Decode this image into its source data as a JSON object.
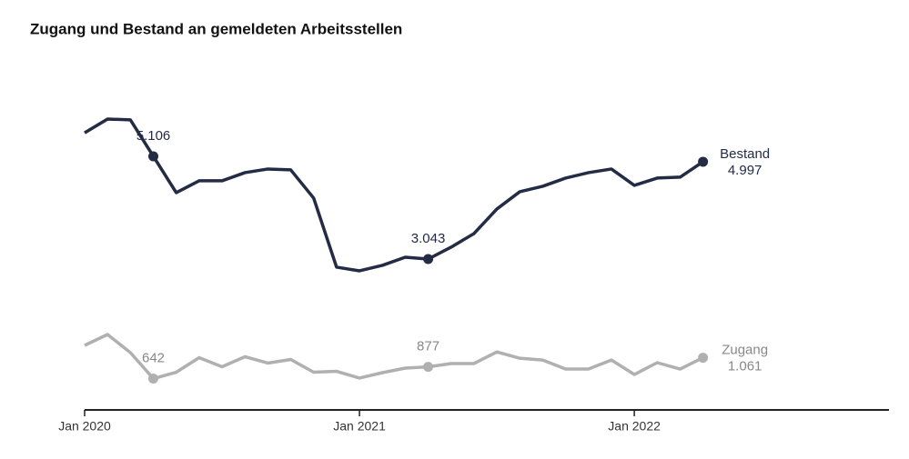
{
  "chart_data": {
    "type": "line",
    "title": "Zugang und Bestand an gemeldeten Arbeitsstellen",
    "x": [
      "2020-01",
      "2020-02",
      "2020-03",
      "2020-04",
      "2020-05",
      "2020-06",
      "2020-07",
      "2020-08",
      "2020-09",
      "2020-10",
      "2020-11",
      "2020-12",
      "2021-01",
      "2021-02",
      "2021-03",
      "2021-04",
      "2021-05",
      "2021-06",
      "2021-07",
      "2021-08",
      "2021-09",
      "2021-10",
      "2021-11",
      "2021-12",
      "2022-01",
      "2022-02",
      "2022-03",
      "2022-04"
    ],
    "xlim": [
      "2020-01",
      "2022-12"
    ],
    "xticks": [
      {
        "value": "2020-01",
        "label": "Jan 2020"
      },
      {
        "value": "2021-01",
        "label": "Jan 2021"
      },
      {
        "value": "2022-01",
        "label": "Jan 2022"
      }
    ],
    "ylim": [
      0,
      6000
    ],
    "grid": false,
    "series": [
      {
        "name": "Bestand",
        "color": "#232b45",
        "values": [
          5578,
          5855,
          5837,
          5106,
          4376,
          4614,
          4614,
          4778,
          4851,
          4833,
          4267,
          2880,
          2806,
          2916,
          3080,
          3043,
          3281,
          3555,
          4048,
          4395,
          4504,
          4669,
          4778,
          4851,
          4523,
          4669,
          4687,
          4997
        ],
        "value_labels": [
          null,
          null,
          null,
          "5.106",
          null,
          null,
          null,
          null,
          null,
          null,
          null,
          null,
          null,
          null,
          null,
          "3.043",
          null,
          null,
          null,
          null,
          null,
          null,
          null,
          null,
          null,
          null,
          null,
          "4.997"
        ]
      },
      {
        "name": "Zugang",
        "color": "#b0b0b0",
        "values": [
          1309,
          1528,
          1163,
          642,
          770,
          1063,
          880,
          1081,
          953,
          1026,
          770,
          788,
          652,
          761,
          852,
          877,
          944,
          944,
          1177,
          1050,
          1014,
          834,
          834,
          1014,
          724,
          962,
          834,
          1061
        ],
        "value_labels": [
          null,
          null,
          null,
          "642",
          null,
          null,
          null,
          null,
          null,
          null,
          null,
          null,
          null,
          null,
          null,
          "877",
          null,
          null,
          null,
          null,
          null,
          null,
          null,
          null,
          null,
          null,
          null,
          "1.061"
        ]
      }
    ]
  }
}
